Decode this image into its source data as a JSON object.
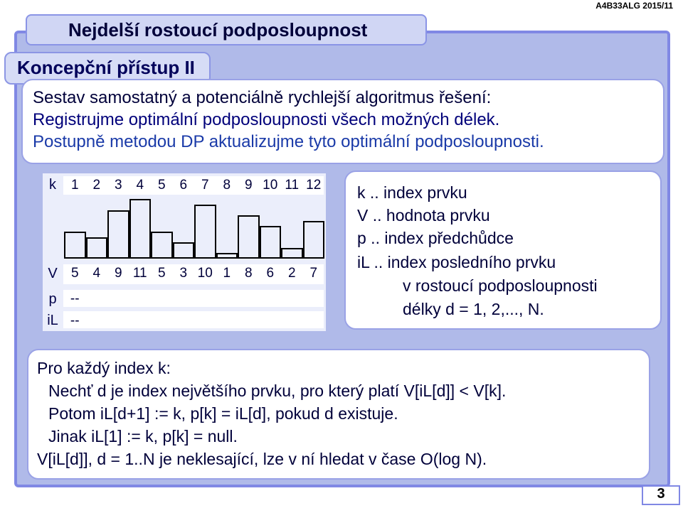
{
  "header": {
    "course_code": "A4B33ALG 2015/11",
    "title": "Nejdelší rostoucí podposloupnost",
    "subtitle": "Koncepční přístup II"
  },
  "intro": {
    "line1": "Sestav samostatný a potenciálně rychlejší algoritmus řešení:",
    "line2": "Registrujme optimální podposloupnosti všech možných délek.",
    "line3": "Postupně metodou DP aktualizujme tyto optimální podposloupnosti."
  },
  "table": {
    "k_label": "k",
    "v_label": "V",
    "p_label": "p",
    "il_label": "iL",
    "k_values": [
      "1",
      "2",
      "3",
      "4",
      "5",
      "6",
      "7",
      "8",
      "9",
      "10",
      "11",
      "12"
    ],
    "v_values": [
      "5",
      "4",
      "9",
      "11",
      "5",
      "3",
      "10",
      "1",
      "8",
      "6",
      "2",
      "7"
    ],
    "p_values": [
      "--",
      "",
      "",
      "",
      "",
      "",
      "",
      "",
      "",
      "",
      "",
      ""
    ],
    "il_values": [
      "--",
      "",
      "",
      "",
      "",
      "",
      "",
      "",
      "",
      "",
      "",
      ""
    ],
    "bar_values": [
      5,
      4,
      9,
      11,
      5,
      3,
      10,
      1,
      8,
      6,
      2,
      7
    ]
  },
  "legend": {
    "lines": [
      "k .. index prvku",
      "V .. hodnota prvku",
      "p .. index předchůdce",
      "iL .. index posledního prvku",
      "v rostoucí podposloupnosti",
      "délky d = 1, 2,..., N."
    ]
  },
  "rules": {
    "lines": [
      "Pro každý index k:",
      "Nechť d je index největšího prvku, pro který platí V[iL[d]] < V[k].",
      "Potom iL[d+1] := k, p[k] = iL[d], pokud d existuje.",
      "Jinak iL[1] := k, p[k] = null.",
      "V[iL[d]], d = 1..N   je neklesající, lze v ní hledat v čase O(log N)."
    ]
  },
  "page_number": "3"
}
